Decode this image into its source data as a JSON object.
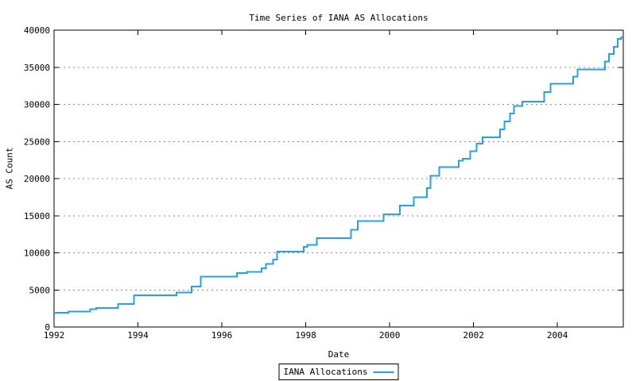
{
  "chart_data": {
    "type": "line",
    "title": "Time Series of IANA AS Allocations",
    "xlabel": "Date",
    "ylabel": "AS Count",
    "legend_label": "IANA Allocations",
    "legend_position": "bottom-center-outside",
    "line_color": "#28a0e6",
    "grid_color": "#8c8c8c",
    "grid": "horizontal-dotted",
    "step_mode": "step-after",
    "xlim": [
      1992,
      2005.57
    ],
    "ylim": [
      0,
      40000
    ],
    "x_ticks": [
      1992,
      1994,
      1996,
      1998,
      2000,
      2002,
      2004
    ],
    "x_tick_labels": [
      "1992",
      "1994",
      "1996",
      "1998",
      "2000",
      "2002",
      "2004"
    ],
    "y_ticks": [
      0,
      5000,
      10000,
      15000,
      20000,
      25000,
      30000,
      35000,
      40000
    ],
    "y_tick_labels": [
      "0",
      "5000",
      "10000",
      "15000",
      "20000",
      "25000",
      "30000",
      "35000",
      "40000"
    ],
    "series": [
      {
        "name": "IANA Allocations",
        "points": [
          [
            1992.0,
            1920
          ],
          [
            1992.34,
            2060
          ],
          [
            1992.86,
            2380
          ],
          [
            1993.0,
            2560
          ],
          [
            1993.53,
            3090
          ],
          [
            1993.9,
            4300
          ],
          [
            1994.92,
            4660
          ],
          [
            1995.28,
            5470
          ],
          [
            1995.5,
            6800
          ],
          [
            1996.36,
            7250
          ],
          [
            1996.6,
            7430
          ],
          [
            1996.95,
            7900
          ],
          [
            1997.05,
            8500
          ],
          [
            1997.22,
            9100
          ],
          [
            1997.32,
            10150
          ],
          [
            1997.95,
            10800
          ],
          [
            1998.04,
            11060
          ],
          [
            1998.26,
            12000
          ],
          [
            1999.08,
            13100
          ],
          [
            1999.24,
            14260
          ],
          [
            1999.86,
            15180
          ],
          [
            2000.24,
            16390
          ],
          [
            2000.58,
            17490
          ],
          [
            2000.89,
            18700
          ],
          [
            2000.97,
            20400
          ],
          [
            2001.18,
            21550
          ],
          [
            2001.65,
            22430
          ],
          [
            2001.74,
            22680
          ],
          [
            2001.92,
            23680
          ],
          [
            2002.07,
            24700
          ],
          [
            2002.22,
            25570
          ],
          [
            2002.63,
            26630
          ],
          [
            2002.74,
            27700
          ],
          [
            2002.87,
            28770
          ],
          [
            2002.96,
            29760
          ],
          [
            2003.16,
            30400
          ],
          [
            2003.68,
            31680
          ],
          [
            2003.84,
            32780
          ],
          [
            2004.38,
            33740
          ],
          [
            2004.48,
            34700
          ],
          [
            2005.13,
            35770
          ],
          [
            2005.23,
            36770
          ],
          [
            2005.34,
            37760
          ],
          [
            2005.44,
            38830
          ],
          [
            2005.52,
            39050
          ]
        ]
      }
    ]
  }
}
